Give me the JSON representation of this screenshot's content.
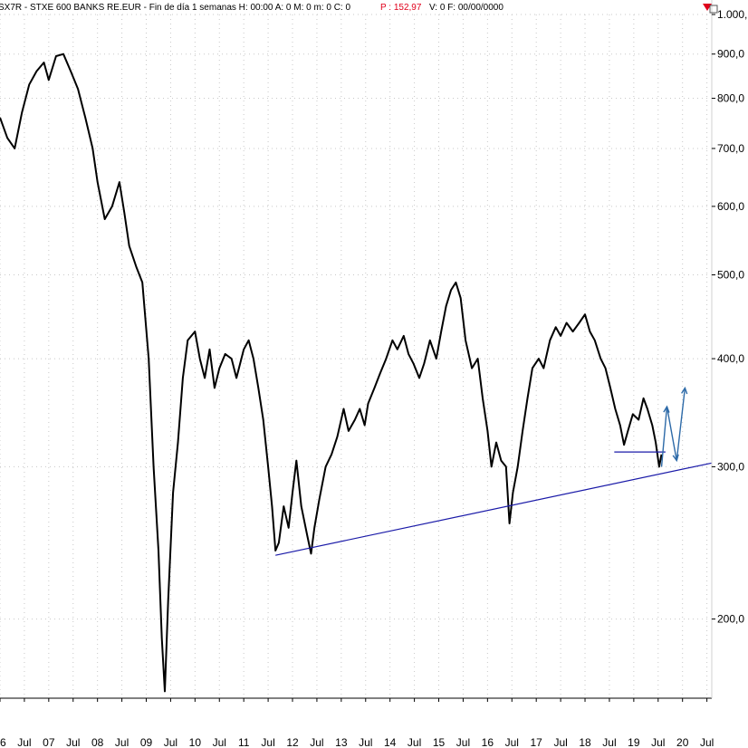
{
  "header": {
    "symbol_text": "SX7R - STXE 600 BANKS RE.EUR - Fin de día 1 semanas  H: 00:00  A: 0  M: 0  m: 0  C: 0",
    "price_text": "P : 152,97",
    "tail_text": "V: 0  F: 00/00/0000"
  },
  "colors": {
    "price_line": "#000000",
    "trendline": "#1a1aa8",
    "projection": "#2d6aa8",
    "price_marker": "#e0001b",
    "grid": "#c8c8c8"
  },
  "chart_data": {
    "type": "line",
    "scale": "log",
    "ylim": [
      162,
      1000
    ],
    "y_ticks": [
      {
        "value": 1000,
        "label": "1.000,"
      },
      {
        "value": 900,
        "label": "900,0"
      },
      {
        "value": 800,
        "label": "800,0"
      },
      {
        "value": 700,
        "label": "700,0"
      },
      {
        "value": 600,
        "label": "600,0"
      },
      {
        "value": 500,
        "label": "500,0"
      },
      {
        "value": 400,
        "label": "400,0"
      },
      {
        "value": 300,
        "label": "300,0"
      },
      {
        "value": 200,
        "label": "200,0"
      }
    ],
    "x_ticks": [
      {
        "x": 2006.0,
        "label": "6"
      },
      {
        "x": 2006.5,
        "label": "Jul"
      },
      {
        "x": 2007.0,
        "label": "07"
      },
      {
        "x": 2007.5,
        "label": "Jul"
      },
      {
        "x": 2008.0,
        "label": "08"
      },
      {
        "x": 2008.5,
        "label": "Jul"
      },
      {
        "x": 2009.0,
        "label": "09"
      },
      {
        "x": 2009.5,
        "label": "Jul"
      },
      {
        "x": 2010.0,
        "label": "10"
      },
      {
        "x": 2010.5,
        "label": "Jul"
      },
      {
        "x": 2011.0,
        "label": "11"
      },
      {
        "x": 2011.5,
        "label": "Jul"
      },
      {
        "x": 2012.0,
        "label": "12"
      },
      {
        "x": 2012.5,
        "label": "Jul"
      },
      {
        "x": 2013.0,
        "label": "13"
      },
      {
        "x": 2013.5,
        "label": "Jul"
      },
      {
        "x": 2014.0,
        "label": "14"
      },
      {
        "x": 2014.5,
        "label": "Jul"
      },
      {
        "x": 2015.0,
        "label": "15"
      },
      {
        "x": 2015.5,
        "label": "Jul"
      },
      {
        "x": 2016.0,
        "label": "16"
      },
      {
        "x": 2016.5,
        "label": "Jul"
      },
      {
        "x": 2017.0,
        "label": "17"
      },
      {
        "x": 2017.5,
        "label": "Jul"
      },
      {
        "x": 2018.0,
        "label": "18"
      },
      {
        "x": 2018.5,
        "label": "Jul"
      },
      {
        "x": 2019.0,
        "label": "19"
      },
      {
        "x": 2019.5,
        "label": "Jul"
      },
      {
        "x": 2020.0,
        "label": "20"
      },
      {
        "x": 2020.5,
        "label": "Jul"
      }
    ],
    "xlim": [
      2006.0,
      2020.6
    ],
    "series": [
      {
        "values": [
          [
            2006.0,
            760
          ],
          [
            2006.15,
            720
          ],
          [
            2006.3,
            700
          ],
          [
            2006.45,
            770
          ],
          [
            2006.6,
            830
          ],
          [
            2006.75,
            860
          ],
          [
            2006.9,
            880
          ],
          [
            2007.0,
            840
          ],
          [
            2007.15,
            895
          ],
          [
            2007.3,
            900
          ],
          [
            2007.45,
            860
          ],
          [
            2007.6,
            820
          ],
          [
            2007.75,
            760
          ],
          [
            2007.9,
            700
          ],
          [
            2008.0,
            640
          ],
          [
            2008.15,
            580
          ],
          [
            2008.3,
            600
          ],
          [
            2008.45,
            640
          ],
          [
            2008.55,
            590
          ],
          [
            2008.65,
            540
          ],
          [
            2008.8,
            510
          ],
          [
            2008.92,
            490
          ],
          [
            2009.05,
            400
          ],
          [
            2009.15,
            300
          ],
          [
            2009.25,
            240
          ],
          [
            2009.32,
            190
          ],
          [
            2009.38,
            165
          ],
          [
            2009.45,
            210
          ],
          [
            2009.55,
            280
          ],
          [
            2009.65,
            320
          ],
          [
            2009.75,
            380
          ],
          [
            2009.85,
            420
          ],
          [
            2010.0,
            430
          ],
          [
            2010.1,
            400
          ],
          [
            2010.2,
            380
          ],
          [
            2010.3,
            410
          ],
          [
            2010.4,
            370
          ],
          [
            2010.5,
            390
          ],
          [
            2010.62,
            405
          ],
          [
            2010.75,
            400
          ],
          [
            2010.85,
            380
          ],
          [
            2011.0,
            410
          ],
          [
            2011.1,
            420
          ],
          [
            2011.2,
            400
          ],
          [
            2011.3,
            370
          ],
          [
            2011.4,
            340
          ],
          [
            2011.5,
            300
          ],
          [
            2011.58,
            270
          ],
          [
            2011.65,
            240
          ],
          [
            2011.72,
            245
          ],
          [
            2011.82,
            270
          ],
          [
            2011.92,
            255
          ],
          [
            2012.0,
            280
          ],
          [
            2012.08,
            305
          ],
          [
            2012.18,
            270
          ],
          [
            2012.3,
            250
          ],
          [
            2012.38,
            238
          ],
          [
            2012.45,
            255
          ],
          [
            2012.55,
            275
          ],
          [
            2012.68,
            300
          ],
          [
            2012.8,
            310
          ],
          [
            2012.92,
            325
          ],
          [
            2013.05,
            350
          ],
          [
            2013.15,
            330
          ],
          [
            2013.28,
            340
          ],
          [
            2013.38,
            350
          ],
          [
            2013.48,
            335
          ],
          [
            2013.55,
            355
          ],
          [
            2013.68,
            370
          ],
          [
            2013.8,
            385
          ],
          [
            2013.92,
            400
          ],
          [
            2014.05,
            420
          ],
          [
            2014.15,
            410
          ],
          [
            2014.28,
            425
          ],
          [
            2014.38,
            405
          ],
          [
            2014.48,
            395
          ],
          [
            2014.6,
            380
          ],
          [
            2014.7,
            395
          ],
          [
            2014.82,
            420
          ],
          [
            2014.95,
            400
          ],
          [
            2015.05,
            430
          ],
          [
            2015.15,
            460
          ],
          [
            2015.25,
            480
          ],
          [
            2015.35,
            490
          ],
          [
            2015.45,
            470
          ],
          [
            2015.55,
            420
          ],
          [
            2015.68,
            390
          ],
          [
            2015.8,
            400
          ],
          [
            2015.9,
            360
          ],
          [
            2016.0,
            330
          ],
          [
            2016.08,
            300
          ],
          [
            2016.18,
            320
          ],
          [
            2016.28,
            305
          ],
          [
            2016.38,
            300
          ],
          [
            2016.45,
            258
          ],
          [
            2016.52,
            280
          ],
          [
            2016.62,
            300
          ],
          [
            2016.72,
            330
          ],
          [
            2016.82,
            360
          ],
          [
            2016.92,
            390
          ],
          [
            2017.05,
            400
          ],
          [
            2017.15,
            390
          ],
          [
            2017.28,
            420
          ],
          [
            2017.4,
            435
          ],
          [
            2017.5,
            425
          ],
          [
            2017.62,
            440
          ],
          [
            2017.75,
            430
          ],
          [
            2017.88,
            440
          ],
          [
            2018.0,
            450
          ],
          [
            2018.1,
            430
          ],
          [
            2018.2,
            420
          ],
          [
            2018.32,
            400
          ],
          [
            2018.42,
            390
          ],
          [
            2018.52,
            370
          ],
          [
            2018.62,
            350
          ],
          [
            2018.72,
            335
          ],
          [
            2018.8,
            318
          ],
          [
            2018.88,
            330
          ],
          [
            2018.98,
            345
          ],
          [
            2019.1,
            340
          ],
          [
            2019.2,
            360
          ],
          [
            2019.28,
            350
          ],
          [
            2019.38,
            335
          ],
          [
            2019.45,
            320
          ],
          [
            2019.52,
            300
          ],
          [
            2019.57,
            310
          ]
        ]
      }
    ],
    "trendline": {
      "from": [
        2011.65,
        237
      ],
      "to": [
        2020.6,
        303
      ]
    },
    "support_line": {
      "from": [
        2018.6,
        312
      ],
      "to": [
        2019.65,
        312
      ]
    },
    "projection": [
      [
        2019.57,
        300
      ],
      [
        2019.68,
        352
      ],
      [
        2019.88,
        305
      ],
      [
        2020.05,
        370
      ]
    ]
  }
}
